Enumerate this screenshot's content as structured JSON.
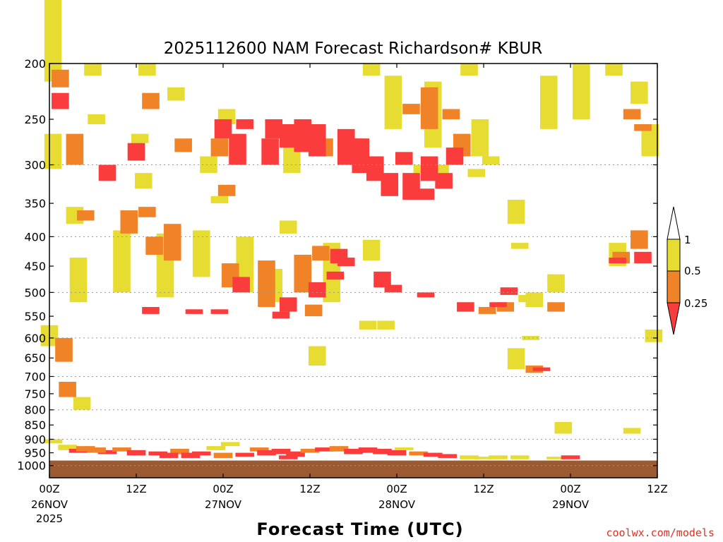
{
  "chart_data": {
    "type": "heatmap",
    "title": "2025112600 NAM Forecast Richardson# KBUR",
    "xlabel": "Forecast Time (UTC)",
    "credit": "coolwx.com/models",
    "y_scale": "log",
    "y_inverted": true,
    "y_ticks": [
      200,
      250,
      300,
      350,
      400,
      450,
      500,
      550,
      600,
      650,
      700,
      750,
      800,
      850,
      900,
      950,
      1000
    ],
    "ylim": [
      200,
      1050
    ],
    "grid_lines_y": [
      300,
      400,
      500,
      600,
      700,
      800,
      900,
      1000
    ],
    "x_range_hours": [
      0,
      84
    ],
    "x_ticks": [
      {
        "hour": 0,
        "time": "00Z",
        "date": "26NOV",
        "year": "2025"
      },
      {
        "hour": 12,
        "time": "12Z",
        "date": "",
        "year": ""
      },
      {
        "hour": 24,
        "time": "00Z",
        "date": "27NOV",
        "year": ""
      },
      {
        "hour": 36,
        "time": "12Z",
        "date": "",
        "year": ""
      },
      {
        "hour": 48,
        "time": "00Z",
        "date": "28NOV",
        "year": ""
      },
      {
        "hour": 60,
        "time": "12Z",
        "date": "",
        "year": ""
      },
      {
        "hour": 72,
        "time": "00Z",
        "date": "29NOV",
        "year": ""
      },
      {
        "hour": 84,
        "time": "12Z",
        "date": "",
        "year": ""
      }
    ],
    "colorbar": {
      "levels": [
        "1",
        "0.5",
        "0.25"
      ],
      "colors": {
        "lt_1": "#e6dc32",
        "lt_0_5": "#f08228",
        "lt_0_25": "#fa3c3c"
      }
    },
    "surface_color": "#9b5a32",
    "surface_pressure": 980,
    "cells": {
      "yellow": [
        [
          0.5,
          85,
          215
        ],
        [
          6.5,
          245,
          255
        ],
        [
          12.5,
          265,
          275
        ],
        [
          13,
          310,
          330
        ],
        [
          6,
          200,
          210
        ],
        [
          13.5,
          200,
          210
        ],
        [
          17.5,
          220,
          232
        ],
        [
          0.5,
          265,
          305
        ],
        [
          3.5,
          355,
          380
        ],
        [
          10,
          390,
          500
        ],
        [
          16,
          395,
          510
        ],
        [
          21,
          390,
          470
        ],
        [
          4,
          435,
          520
        ],
        [
          0,
          570,
          620
        ],
        [
          4.5,
          760,
          800
        ],
        [
          24.5,
          240,
          255
        ],
        [
          23.5,
          340,
          350
        ],
        [
          22,
          290,
          310
        ],
        [
          27,
          400,
          500
        ],
        [
          33.5,
          280,
          310
        ],
        [
          33,
          375,
          395
        ],
        [
          39,
          410,
          520
        ],
        [
          44,
          560,
          580
        ],
        [
          46.5,
          560,
          580
        ],
        [
          44.5,
          200,
          210
        ],
        [
          47.5,
          210,
          260
        ],
        [
          53,
          215,
          280
        ],
        [
          58,
          200,
          210
        ],
        [
          59.5,
          250,
          290
        ],
        [
          61,
          290,
          300
        ],
        [
          65,
          410,
          420
        ],
        [
          64.5,
          345,
          380
        ],
        [
          66,
          505,
          520
        ],
        [
          67,
          500,
          530
        ],
        [
          66.5,
          595,
          605
        ],
        [
          69,
          210,
          260
        ],
        [
          73.5,
          200,
          250
        ],
        [
          78,
          200,
          210
        ],
        [
          81.5,
          215,
          235
        ],
        [
          83,
          255,
          290
        ],
        [
          71,
          840,
          880
        ],
        [
          80.5,
          860,
          880
        ],
        [
          78.5,
          410,
          450
        ],
        [
          83.5,
          580,
          610
        ],
        [
          64.5,
          625,
          680
        ],
        [
          70,
          465,
          500
        ],
        [
          31,
          455,
          520
        ],
        [
          44.5,
          405,
          440
        ],
        [
          51.5,
          300,
          310
        ],
        [
          54,
          300,
          310
        ],
        [
          59,
          305,
          315
        ],
        [
          37,
          620,
          670
        ]
      ],
      "orange": [
        [
          1.5,
          205,
          220
        ],
        [
          3.5,
          265,
          300
        ],
        [
          14,
          225,
          240
        ],
        [
          18.5,
          270,
          285
        ],
        [
          5,
          360,
          375
        ],
        [
          11,
          360,
          395
        ],
        [
          13.5,
          355,
          370
        ],
        [
          17,
          380,
          440
        ],
        [
          14.5,
          400,
          430
        ],
        [
          2,
          600,
          660
        ],
        [
          23.5,
          270,
          290
        ],
        [
          24.5,
          325,
          340
        ],
        [
          25,
          445,
          490
        ],
        [
          30,
          440,
          530
        ],
        [
          35,
          430,
          500
        ],
        [
          36.5,
          525,
          550
        ],
        [
          38,
          270,
          290
        ],
        [
          42.5,
          270,
          285
        ],
        [
          52.5,
          220,
          260
        ],
        [
          55.5,
          240,
          250
        ],
        [
          57,
          265,
          290
        ],
        [
          60.5,
          530,
          545
        ],
        [
          63,
          520,
          540
        ],
        [
          70,
          520,
          540
        ],
        [
          79,
          425,
          445
        ],
        [
          81.5,
          390,
          420
        ],
        [
          82,
          255,
          262
        ],
        [
          80.5,
          240,
          250
        ],
        [
          67,
          670,
          690
        ],
        [
          2.5,
          715,
          760
        ],
        [
          37.5,
          415,
          440
        ],
        [
          50,
          235,
          245
        ]
      ],
      "red": [
        [
          1.5,
          225,
          240
        ],
        [
          8,
          300,
          320
        ],
        [
          12,
          275,
          295
        ],
        [
          20,
          535,
          545
        ],
        [
          14,
          530,
          545
        ],
        [
          23.5,
          535,
          545
        ],
        [
          26.5,
          470,
          500
        ],
        [
          33,
          510,
          540
        ],
        [
          32,
          540,
          555
        ],
        [
          37,
          480,
          510
        ],
        [
          40,
          420,
          445
        ],
        [
          39.5,
          460,
          475
        ],
        [
          41,
          435,
          450
        ],
        [
          47,
          310,
          340
        ],
        [
          50,
          310,
          345
        ],
        [
          47.5,
          485,
          500
        ],
        [
          46,
          460,
          490
        ],
        [
          52.5,
          290,
          320
        ],
        [
          54.5,
          310,
          330
        ],
        [
          57.5,
          520,
          540
        ],
        [
          52,
          500,
          510
        ],
        [
          62,
          520,
          530
        ],
        [
          63.5,
          490,
          505
        ],
        [
          78.5,
          435,
          445
        ],
        [
          82,
          425,
          445
        ],
        [
          24,
          250,
          270
        ],
        [
          27,
          250,
          260
        ],
        [
          31,
          250,
          270
        ],
        [
          33,
          255,
          280
        ],
        [
          35,
          250,
          285
        ],
        [
          37,
          255,
          290
        ],
        [
          41,
          260,
          300
        ],
        [
          43,
          270,
          310
        ],
        [
          45,
          290,
          320
        ],
        [
          30.5,
          270,
          300
        ],
        [
          26,
          265,
          300
        ],
        [
          68,
          675,
          685
        ],
        [
          49,
          285,
          300
        ],
        [
          56,
          280,
          300
        ],
        [
          52,
          330,
          345
        ]
      ],
      "boundary_layer": [
        [
          2.5,
          920,
          940,
          "yellow"
        ],
        [
          4,
          935,
          950,
          "red"
        ],
        [
          5,
          925,
          945,
          "orange"
        ],
        [
          8,
          940,
          955,
          "red"
        ],
        [
          10,
          930,
          945,
          "orange"
        ],
        [
          12,
          940,
          960,
          "red"
        ],
        [
          15,
          945,
          960,
          "red"
        ],
        [
          18,
          935,
          955,
          "orange"
        ],
        [
          21,
          945,
          960,
          "red"
        ],
        [
          23,
          925,
          940,
          "yellow"
        ],
        [
          25,
          910,
          925,
          "yellow"
        ],
        [
          27,
          950,
          965,
          "red"
        ],
        [
          29,
          930,
          945,
          "orange"
        ],
        [
          30,
          940,
          960,
          "red"
        ],
        [
          32,
          935,
          955,
          "red"
        ],
        [
          34,
          945,
          965,
          "red"
        ],
        [
          36,
          935,
          950,
          "orange"
        ],
        [
          38,
          930,
          945,
          "red"
        ],
        [
          40,
          925,
          945,
          "orange"
        ],
        [
          42,
          935,
          955,
          "red"
        ],
        [
          44,
          930,
          950,
          "red"
        ],
        [
          46,
          935,
          955,
          "red"
        ],
        [
          48,
          940,
          960,
          "red"
        ],
        [
          49,
          930,
          940,
          "yellow"
        ],
        [
          51,
          945,
          960,
          "orange"
        ],
        [
          53,
          950,
          965,
          "red"
        ],
        [
          55,
          955,
          970,
          "red"
        ],
        [
          58,
          960,
          975,
          "yellow"
        ],
        [
          60,
          965,
          975,
          "yellow"
        ],
        [
          62,
          960,
          975,
          "yellow"
        ],
        [
          65,
          960,
          975,
          "yellow"
        ],
        [
          70,
          965,
          975,
          "yellow"
        ],
        [
          72,
          960,
          975,
          "red"
        ],
        [
          0.5,
          900,
          915,
          "yellow"
        ],
        [
          6.5,
          930,
          950,
          "orange"
        ],
        [
          16.5,
          950,
          970,
          "red"
        ],
        [
          19.5,
          950,
          970,
          "red"
        ],
        [
          24,
          950,
          970,
          "orange"
        ],
        [
          33,
          960,
          975,
          "red"
        ]
      ]
    }
  }
}
